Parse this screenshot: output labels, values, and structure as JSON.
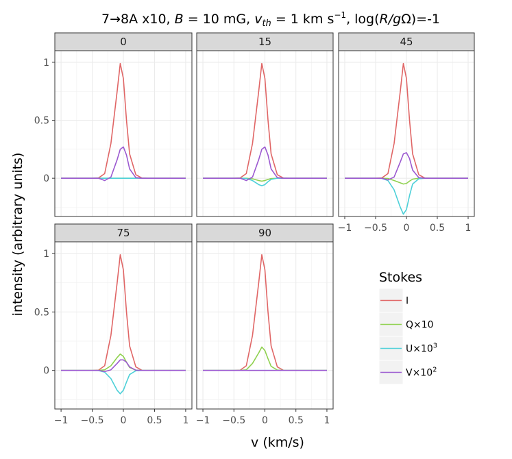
{
  "chart_data": {
    "type": "line",
    "title": "7→8A x10, B = 10 mG, v_th = 1 km s⁻¹, log(R/gΩ)=-1",
    "title_parts": {
      "t1": "7→8A x10, ",
      "t2": "B",
      "t3": " = 10 mG, ",
      "t4": "v",
      "t5": "th",
      "t6": " = 1 km s",
      "t7": "−1",
      "t8": ", log(",
      "t9": "R/g",
      "t10": "Ω)=-1"
    },
    "xlabel": "v (km/s)",
    "ylabel": "intensity (arbitrary units)",
    "xlim": [
      -1.1,
      1.1
    ],
    "ylim": [
      -0.33,
      1.1
    ],
    "x_ticks": [
      -1,
      -0.5,
      0,
      0.5,
      1
    ],
    "x_tick_labels": [
      "−1",
      "−0.5",
      "0",
      "0.5",
      "1"
    ],
    "y_ticks": [
      0,
      0.5,
      1
    ],
    "y_tick_labels": [
      "0",
      "0.5",
      "1"
    ],
    "grid": true,
    "background": "#ffffff",
    "strip_fill": "#d9d9d9",
    "legend": {
      "title": "Stokes",
      "position": "right",
      "entries": [
        {
          "key": "I",
          "parts": [
            "I",
            ""
          ],
          "color": "#e06666"
        },
        {
          "key": "Q",
          "parts": [
            "Q×10",
            ""
          ],
          "color": "#8fd14f"
        },
        {
          "key": "U",
          "parts": [
            "U×10",
            "3"
          ],
          "color": "#4dd0d8"
        },
        {
          "key": "V",
          "parts": [
            "V×10",
            "2"
          ],
          "color": "#9b59d0"
        }
      ]
    },
    "x": [
      -1,
      -0.9,
      -0.8,
      -0.7,
      -0.6,
      -0.5,
      -0.4,
      -0.3,
      -0.2,
      -0.1,
      -0.05,
      0,
      0.05,
      0.1,
      0.2,
      0.3,
      0.4,
      0.5,
      0.6,
      0.7,
      0.8,
      0.9,
      1
    ],
    "panels": [
      {
        "label": "0",
        "series": [
          {
            "key": "I",
            "values": [
              0,
              0,
              0,
              0,
              0,
              0,
              0.002,
              0.04,
              0.3,
              0.75,
              0.99,
              0.86,
              0.5,
              0.21,
              0.03,
              0.001,
              0,
              0,
              0,
              0,
              0,
              0,
              0
            ]
          },
          {
            "key": "Q",
            "values": [
              0,
              0,
              0,
              0,
              0,
              0,
              0,
              0,
              0,
              0,
              0,
              0,
              0,
              0,
              0,
              0,
              0,
              0,
              0,
              0,
              0,
              0,
              0
            ]
          },
          {
            "key": "U",
            "values": [
              0,
              0,
              0,
              0,
              0,
              0,
              0,
              0,
              0,
              0,
              0,
              0,
              0,
              0,
              0,
              0,
              0,
              0,
              0,
              0,
              0,
              0,
              0
            ]
          },
          {
            "key": "V",
            "values": [
              0,
              0,
              0,
              0,
              0,
              0,
              0,
              -0.02,
              0.01,
              0.16,
              0.25,
              0.27,
              0.2,
              0.08,
              0.005,
              0,
              0,
              0,
              0,
              0,
              0,
              0,
              0
            ]
          }
        ]
      },
      {
        "label": "15",
        "series": [
          {
            "key": "I",
            "values": [
              0,
              0,
              0,
              0,
              0,
              0,
              0.002,
              0.04,
              0.3,
              0.75,
              0.99,
              0.86,
              0.5,
              0.21,
              0.03,
              0.001,
              0,
              0,
              0,
              0,
              0,
              0,
              0
            ]
          },
          {
            "key": "Q",
            "values": [
              0,
              0,
              0,
              0,
              0,
              0,
              0,
              0,
              -0.005,
              -0.02,
              -0.025,
              -0.02,
              -0.01,
              -0.003,
              0,
              0,
              0,
              0,
              0,
              0,
              0,
              0,
              0
            ]
          },
          {
            "key": "U",
            "values": [
              0,
              0,
              0,
              0,
              0,
              0,
              0,
              -0.002,
              -0.02,
              -0.055,
              -0.065,
              -0.055,
              -0.03,
              -0.01,
              0,
              0,
              0,
              0,
              0,
              0,
              0,
              0,
              0
            ]
          },
          {
            "key": "V",
            "values": [
              0,
              0,
              0,
              0,
              0,
              0,
              0,
              -0.02,
              0.01,
              0.16,
              0.25,
              0.27,
              0.2,
              0.08,
              0.005,
              0,
              0,
              0,
              0,
              0,
              0,
              0,
              0
            ]
          }
        ]
      },
      {
        "label": "45",
        "series": [
          {
            "key": "I",
            "values": [
              0,
              0,
              0,
              0,
              0,
              0,
              0.002,
              0.04,
              0.3,
              0.75,
              0.99,
              0.86,
              0.5,
              0.21,
              0.03,
              0.001,
              0,
              0,
              0,
              0,
              0,
              0,
              0
            ]
          },
          {
            "key": "Q",
            "values": [
              0,
              0,
              0,
              0,
              0,
              0,
              0,
              -0.002,
              -0.02,
              -0.04,
              -0.05,
              -0.045,
              -0.025,
              -0.008,
              0,
              0,
              0,
              0,
              0,
              0,
              0,
              0,
              0
            ]
          },
          {
            "key": "U",
            "values": [
              0,
              0,
              0,
              0,
              0,
              0,
              -0.002,
              -0.02,
              -0.1,
              -0.25,
              -0.31,
              -0.27,
              -0.15,
              -0.05,
              -0.005,
              0,
              0,
              0,
              0,
              0,
              0,
              0,
              0
            ]
          },
          {
            "key": "V",
            "values": [
              0,
              0,
              0,
              0,
              0,
              0,
              0,
              -0.015,
              0.01,
              0.14,
              0.21,
              0.22,
              0.17,
              0.07,
              0.005,
              0,
              0,
              0,
              0,
              0,
              0,
              0,
              0
            ]
          }
        ]
      },
      {
        "label": "75",
        "series": [
          {
            "key": "I",
            "values": [
              0,
              0,
              0,
              0,
              0,
              0,
              0.002,
              0.04,
              0.3,
              0.75,
              0.99,
              0.86,
              0.5,
              0.21,
              0.03,
              0.001,
              0,
              0,
              0,
              0,
              0,
              0,
              0
            ]
          },
          {
            "key": "Q",
            "values": [
              0,
              0,
              0,
              0,
              0,
              0,
              0,
              0.005,
              0.04,
              0.11,
              0.14,
              0.12,
              0.07,
              0.025,
              0.002,
              0,
              0,
              0,
              0,
              0,
              0,
              0,
              0
            ]
          },
          {
            "key": "U",
            "values": [
              0,
              0,
              0,
              0,
              0,
              0,
              -0.001,
              -0.015,
              -0.07,
              -0.17,
              -0.2,
              -0.17,
              -0.1,
              -0.035,
              -0.003,
              0,
              0,
              0,
              0,
              0,
              0,
              0,
              0
            ]
          },
          {
            "key": "V",
            "values": [
              0,
              0,
              0,
              0,
              0,
              0,
              0,
              -0.01,
              0.005,
              0.06,
              0.09,
              0.09,
              0.07,
              0.03,
              0.002,
              0,
              0,
              0,
              0,
              0,
              0,
              0,
              0
            ]
          }
        ]
      },
      {
        "label": "90",
        "series": [
          {
            "key": "I",
            "values": [
              0,
              0,
              0,
              0,
              0,
              0,
              0.002,
              0.04,
              0.3,
              0.75,
              0.99,
              0.86,
              0.5,
              0.21,
              0.03,
              0.001,
              0,
              0,
              0,
              0,
              0,
              0,
              0
            ]
          },
          {
            "key": "Q",
            "values": [
              0,
              0,
              0,
              0,
              0,
              0,
              0,
              0.005,
              0.06,
              0.15,
              0.2,
              0.17,
              0.1,
              0.035,
              0.003,
              0,
              0,
              0,
              0,
              0,
              0,
              0,
              0
            ]
          },
          {
            "key": "U",
            "values": [
              0,
              0,
              0,
              0,
              0,
              0,
              0,
              0,
              0,
              0,
              0,
              0,
              0,
              0,
              0,
              0,
              0,
              0,
              0,
              0,
              0,
              0,
              0
            ]
          },
          {
            "key": "V",
            "values": [
              0,
              0,
              0,
              0,
              0,
              0,
              0,
              0,
              0,
              0,
              0,
              0,
              0,
              0,
              0,
              0,
              0,
              0,
              0,
              0,
              0,
              0,
              0
            ]
          }
        ]
      }
    ]
  }
}
